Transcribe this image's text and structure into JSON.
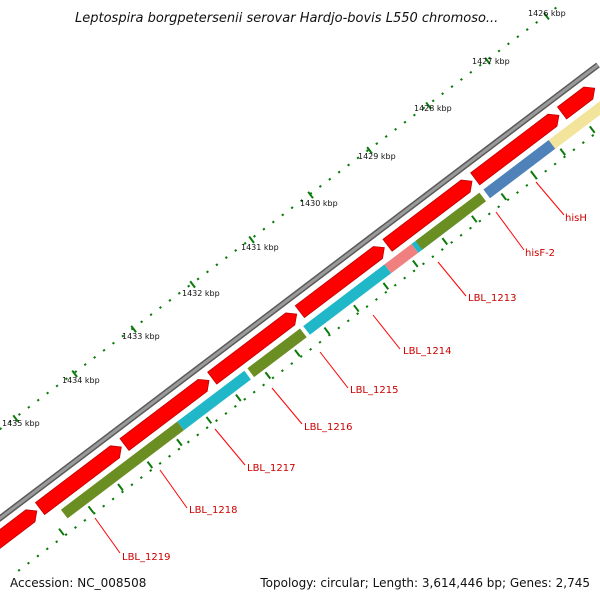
{
  "title": "Leptospira borgpetersenii serovar Hardjo-bovis L550 chromoso...",
  "footer": {
    "accession": "Accession: NC_008508",
    "summary": "Topology: circular; Length: 3,614,446 bp; Genes: 2,745"
  },
  "scale_labels": [
    "1426 kbp",
    "1427 kbp",
    "1428 kbp",
    "1429 kbp",
    "1430 kbp",
    "1431 kbp",
    "1432 kbp",
    "1433 kbp",
    "1434 kbp",
    "1435 kbp"
  ],
  "gene_labels": [
    "hisH",
    "hisF-2",
    "LBL_1213",
    "LBL_1214",
    "LBL_1215",
    "LBL_1216",
    "LBL_1217",
    "LBL_1218",
    "LBL_1219"
  ],
  "colors": {
    "backbone": "#808080",
    "forward_cds": "#ff0000",
    "hisH": "#f2e49a",
    "hisF-2": "#4f82b8",
    "LBL_1213": "#6b8e23",
    "LBL_1214": "#20b8c8",
    "LBL_1215": "#f08080",
    "LBL_1216": "#20b8c8",
    "LBL_1217": "#6b8e23",
    "LBL_1218": "#20b8c8",
    "LBL_1219": "#6b8e23",
    "ticks": "#0a7a0a",
    "label_text": "#cc0000"
  }
}
